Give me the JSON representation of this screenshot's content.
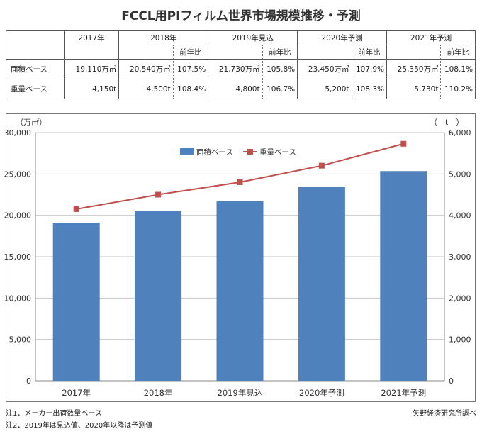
{
  "title": "FCCL用PIフィルム世界市場規模推移・予測",
  "table": {
    "headers": [
      "2017年",
      "2018年",
      "2019年見込",
      "2020年予測",
      "2021年予測"
    ],
    "yoy_label": "前年比",
    "rows": [
      {
        "label": "面積ベース",
        "cells": [
          {
            "value": "19,110万㎡",
            "yoy": ""
          },
          {
            "value": "20,540万㎡",
            "yoy": "107.5%"
          },
          {
            "value": "21,730万㎡",
            "yoy": "105.8%"
          },
          {
            "value": "23,450万㎡",
            "yoy": "107.9%"
          },
          {
            "value": "25,350万㎡",
            "yoy": "108.1%"
          }
        ]
      },
      {
        "label": "重量ベース",
        "cells": [
          {
            "value": "4,150t",
            "yoy": ""
          },
          {
            "value": "4,500t",
            "yoy": "108.4%"
          },
          {
            "value": "4,800t",
            "yoy": "106.7%"
          },
          {
            "value": "5,200t",
            "yoy": "108.3%"
          },
          {
            "value": "5,730t",
            "yoy": "110.2%"
          }
        ]
      }
    ]
  },
  "chart_data": {
    "type": "bar",
    "categories": [
      "2017年",
      "2018年",
      "2019年見込",
      "2020年予測",
      "2021年予測"
    ],
    "series": [
      {
        "name": "面積ベース",
        "type": "bar",
        "axis": "left",
        "values": [
          19110,
          20540,
          21730,
          23450,
          25350
        ]
      },
      {
        "name": "重量ベース",
        "type": "line",
        "axis": "right",
        "values": [
          4150,
          4500,
          4800,
          5200,
          5730
        ]
      }
    ],
    "ylabel_left": "（万㎡）",
    "ylabel_right": "（　t　）",
    "ylim_left": [
      0,
      30000
    ],
    "ylim_right": [
      0,
      6000
    ],
    "yticks_left": [
      "0",
      "5,000",
      "10,000",
      "15,000",
      "20,000",
      "25,000",
      "30,000"
    ],
    "yticks_right": [
      "0",
      "1,000",
      "2,000",
      "3,000",
      "4,000",
      "5,000",
      "6,000"
    ],
    "legend": "top-center",
    "grid": true,
    "colors": {
      "bar": "#4f81bd",
      "line": "#c0504d"
    }
  },
  "notes": {
    "note1": "注1．メーカー出荷数量ベース",
    "note2": "注2．2019年は見込値、2020年以降は予測値",
    "source": "矢野経済研究所調べ"
  }
}
